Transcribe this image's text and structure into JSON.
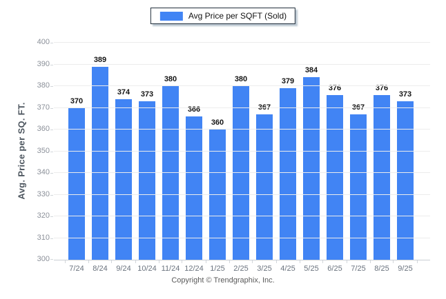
{
  "chart_data": {
    "type": "bar",
    "legend": [
      "Avg Price per SQFT (Sold)"
    ],
    "categories": [
      "7/24",
      "8/24",
      "9/24",
      "10/24",
      "11/24",
      "12/24",
      "1/25",
      "2/25",
      "3/25",
      "4/25",
      "5/25",
      "6/25",
      "7/25",
      "8/25",
      "9/25"
    ],
    "values": [
      370,
      389,
      374,
      373,
      380,
      366,
      360,
      380,
      367,
      379,
      384,
      376,
      367,
      376,
      373
    ],
    "xlabel": "",
    "ylabel": "Avg. Price per SQ. FT.",
    "ylim": [
      300,
      400
    ],
    "ytick_step": 10,
    "grid": "horizontal",
    "legend_position": "top-center",
    "footer": "Copyright © Trendgraphix, Inc."
  },
  "colors": {
    "bar": "#4184f4",
    "gridline": "#ececec",
    "baseline": "#c9ced3",
    "y_tick_label": "#8b9099",
    "x_tick_label": "#69727d",
    "value_label": "#141414",
    "axis_title": "#4d565f",
    "legend_border": "#1f2d3a",
    "legend_shadow": "#bcc8d2",
    "footer_text": "#595959",
    "background": "#ffffff"
  }
}
